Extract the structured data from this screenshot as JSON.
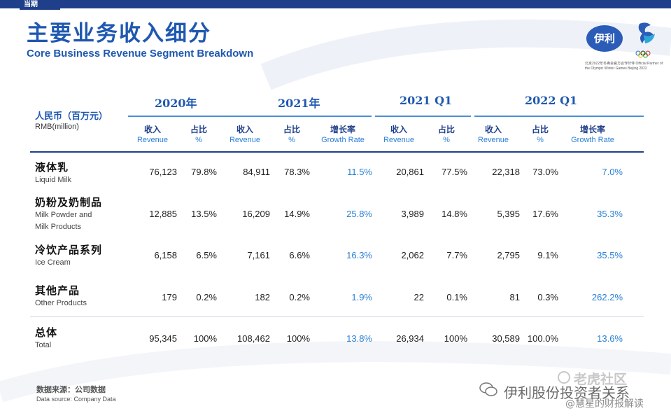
{
  "header": {
    "tag": "当期",
    "title_cn": "主要业务收入细分",
    "title_en": "Core Business Revenue Segment Breakdown",
    "logo_text": "伊利",
    "partner_text": "北京2022年冬奥会官方合作伙伴 Official Partner of the Olympic Winter Games Beijing 2022"
  },
  "table": {
    "unit_cn": "人民币（百万元）",
    "unit_en": "RMB(million)",
    "periods": [
      "2020年",
      "2021年",
      "2021 Q1",
      "2022 Q1"
    ],
    "col_rev_cn": "收入",
    "col_rev_en": "Revenue",
    "col_pct_cn": "占比",
    "col_pct_en": "%",
    "col_gr_cn": "增长率",
    "col_gr_en": "Growth Rate",
    "rows": [
      {
        "cn": "液体乳",
        "en": "Liquid Milk",
        "en2": "",
        "v": [
          "76,123",
          "79.8%",
          "84,911",
          "78.3%",
          "11.5%",
          "20,861",
          "77.5%",
          "22,318",
          "73.0%",
          "7.0%"
        ]
      },
      {
        "cn": "奶粉及奶制品",
        "en": "Milk Powder and",
        "en2": "Milk Products",
        "v": [
          "12,885",
          "13.5%",
          "16,209",
          "14.9%",
          "25.8%",
          "3,989",
          "14.8%",
          "5,395",
          "17.6%",
          "35.3%"
        ]
      },
      {
        "cn": "冷饮产品系列",
        "en": "Ice Cream",
        "en2": "",
        "v": [
          "6,158",
          "6.5%",
          "7,161",
          "6.6%",
          "16.3%",
          "2,062",
          "7.7%",
          "2,795",
          "9.1%",
          "35.5%"
        ]
      },
      {
        "cn": "其他产品",
        "en": "Other Products",
        "en2": "",
        "v": [
          "179",
          "0.2%",
          "182",
          "0.2%",
          "1.9%",
          "22",
          "0.1%",
          "81",
          "0.3%",
          "262.2%"
        ]
      },
      {
        "cn": "总体",
        "en": "Total",
        "en2": "",
        "v": [
          "95,345",
          "100%",
          "108,462",
          "100%",
          "13.8%",
          "26,934",
          "100%",
          "30,589",
          "100.0%",
          "13.6%"
        ]
      }
    ]
  },
  "source": {
    "cn": "数据来源：公司数据",
    "en": "Data source: Company Data"
  },
  "watermark": {
    "line1": "老虎社区",
    "line2": "伊利股份投资者关系",
    "line3": "@慧星的财报解读"
  }
}
